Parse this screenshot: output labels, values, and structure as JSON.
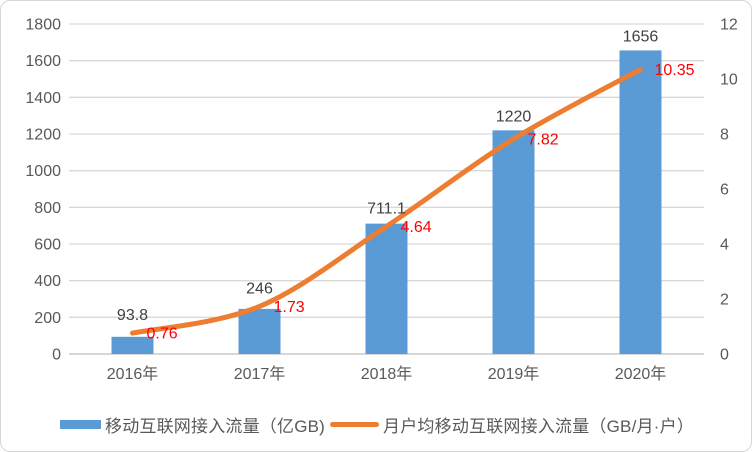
{
  "chart_data": {
    "type": "combo-bar-line",
    "title": "",
    "categories": [
      "2016年",
      "2017年",
      "2018年",
      "2019年",
      "2020年"
    ],
    "series": [
      {
        "name": "移动互联网接入流量（亿GB)",
        "type": "bar",
        "axis": "left",
        "color": "#5B9BD5",
        "values": [
          93.8,
          246,
          711.1,
          1220,
          1656
        ],
        "data_labels": [
          "93.8",
          "246",
          "711.1",
          "1220",
          "1656"
        ],
        "data_label_color": "#404040"
      },
      {
        "name": "月户均移动互联网接入流量（GB/月·户）",
        "type": "line",
        "axis": "right",
        "color": "#ED7D31",
        "values": [
          0.76,
          1.73,
          4.64,
          7.82,
          10.35
        ],
        "data_labels": [
          "0.76",
          "1.73",
          "4.64",
          "7.82",
          "10.35"
        ],
        "data_label_color": "#FF0000"
      }
    ],
    "left_axis": {
      "min": 0,
      "max": 1800,
      "step": 200,
      "tick_labels": [
        "0",
        "200",
        "400",
        "600",
        "800",
        "1000",
        "1200",
        "1400",
        "1600",
        "1800"
      ]
    },
    "right_axis": {
      "min": 0,
      "max": 12,
      "step": 2,
      "tick_labels": [
        "0",
        "2",
        "4",
        "6",
        "8",
        "10",
        "12"
      ]
    },
    "grid": true,
    "legend_position": "bottom",
    "colors": {
      "gridline": "#D9D9D9",
      "axis_line": "#BFBFBF",
      "tick_text": "#595959",
      "category_text": "#595959",
      "frame_border": "#D6D6D6",
      "background": "#FFFFFF"
    }
  }
}
